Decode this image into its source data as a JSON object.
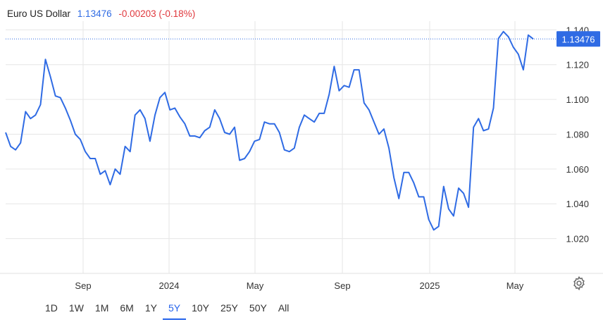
{
  "header": {
    "title": "Euro US Dollar",
    "price": "1.13476",
    "change": "-0.00203 (-0.18%)"
  },
  "colors": {
    "line": "#2f6be4",
    "price": "#2f6be4",
    "change": "#e0393e",
    "grid": "#e6e6e6",
    "badge_bg": "#2f6be4"
  },
  "last_price_badge": "1.13476",
  "ranges": [
    "1D",
    "1W",
    "1M",
    "6M",
    "1Y",
    "5Y",
    "10Y",
    "25Y",
    "50Y",
    "All"
  ],
  "active_range": "5Y",
  "settings_icon": "gear-icon",
  "chart_data": {
    "type": "line",
    "title": "Euro US Dollar",
    "xlabel": "",
    "ylabel": "",
    "ylim": [
      1.0,
      1.145
    ],
    "yticks": [
      "1.140",
      "1.120",
      "1.100",
      "1.080",
      "1.060",
      "1.040",
      "1.020"
    ],
    "xticks": [
      "Sep",
      "2024",
      "May",
      "Sep",
      "2025",
      "May"
    ],
    "grid": true,
    "series": [
      {
        "values": [
          1.081,
          1.073,
          1.071,
          1.075,
          1.093,
          1.089,
          1.091,
          1.097,
          1.123,
          1.113,
          1.102,
          1.101,
          1.095,
          1.088,
          1.08,
          1.077,
          1.07,
          1.066,
          1.066,
          1.057,
          1.059,
          1.051,
          1.06,
          1.057,
          1.073,
          1.07,
          1.091,
          1.094,
          1.089,
          1.076,
          1.091,
          1.101,
          1.104,
          1.094,
          1.095,
          1.09,
          1.086,
          1.079,
          1.079,
          1.078,
          1.082,
          1.084,
          1.094,
          1.089,
          1.081,
          1.08,
          1.084,
          1.065,
          1.066,
          1.07,
          1.076,
          1.077,
          1.087,
          1.086,
          1.086,
          1.081,
          1.071,
          1.07,
          1.072,
          1.084,
          1.091,
          1.089,
          1.087,
          1.092,
          1.092,
          1.103,
          1.119,
          1.105,
          1.108,
          1.107,
          1.117,
          1.117,
          1.098,
          1.094,
          1.087,
          1.08,
          1.083,
          1.072,
          1.055,
          1.043,
          1.058,
          1.058,
          1.052,
          1.044,
          1.044,
          1.031,
          1.025,
          1.027,
          1.05,
          1.037,
          1.033,
          1.049,
          1.046,
          1.038,
          1.084,
          1.089,
          1.082,
          1.083,
          1.095,
          1.135,
          1.139,
          1.136,
          1.13,
          1.126,
          1.117,
          1.137,
          1.13476
        ]
      }
    ]
  }
}
